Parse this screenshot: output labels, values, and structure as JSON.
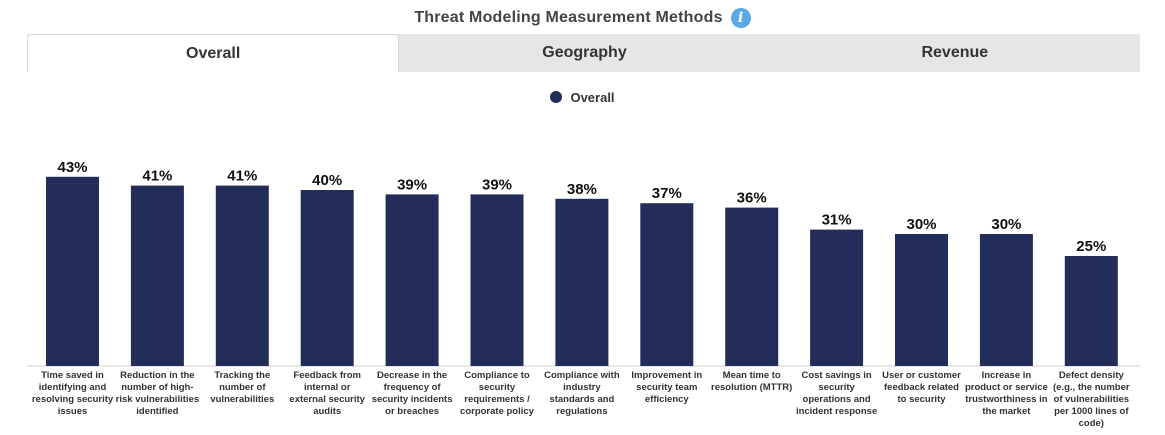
{
  "header": {
    "title": "Threat Modeling Measurement Methods",
    "info_icon": "info-icon"
  },
  "tabs": [
    {
      "label": "Overall",
      "active": true
    },
    {
      "label": "Geography",
      "active": false
    },
    {
      "label": "Revenue",
      "active": false
    }
  ],
  "colors": {
    "bar": "#232d5a",
    "tab_inactive": "#e6e6e6",
    "info_icon": "#5aa9e6"
  },
  "chart_data": {
    "type": "bar",
    "title": "",
    "xlabel": "",
    "ylabel": "",
    "ylim": [
      0,
      45
    ],
    "grid": false,
    "legend": "top-center",
    "series": [
      {
        "name": "Overall"
      }
    ],
    "categories": [
      "Time saved in identifying and resolving security issues",
      "Reduction in the number of high-risk vulnerabilities identified",
      "Tracking the number of vulnerabilities",
      "Feedback from internal or external security audits",
      "Decrease in the frequency of security incidents or breaches",
      "Compliance to security requirements / corporate policy",
      "Compliance with industry standards and regulations",
      "Improvement in security team efficiency",
      "Mean time to resolution (MTTR)",
      "Cost savings in security operations and incident response",
      "User or customer feedback related to security",
      "Increase in product or service trustworthiness in the market",
      "Defect density (e.g., the number of vulnerabilities per 1000 lines of code)"
    ],
    "values": [
      43,
      41,
      41,
      40,
      39,
      39,
      38,
      37,
      36,
      31,
      30,
      30,
      25
    ],
    "value_labels": [
      "43%",
      "41%",
      "41%",
      "40%",
      "39%",
      "39%",
      "38%",
      "37%",
      "36%",
      "31%",
      "30%",
      "30%",
      "25%"
    ]
  }
}
